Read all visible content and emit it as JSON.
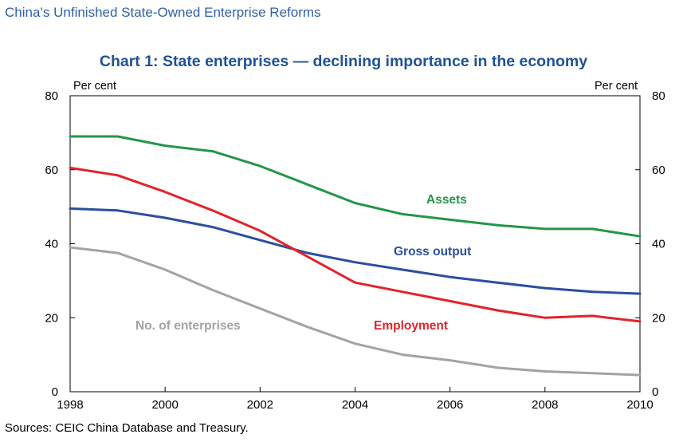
{
  "header": "China’s Unfinished State-Owned Enterprise Reforms",
  "source": "Sources: CEIC China Database and Treasury.",
  "colors": {
    "assets": "#24964a",
    "gross_output": "#2b4f9e",
    "employment": "#e2232a",
    "enterprises": "#a3a3a3",
    "title": "#1f5296"
  },
  "chart_data": {
    "type": "line",
    "title": "Chart 1: State enterprises — declining importance in the economy",
    "ylabel_left": "Per cent",
    "ylabel_right": "Per cent",
    "xlim": [
      1998,
      2010
    ],
    "ylim": [
      0,
      80
    ],
    "x_ticks": [
      "1998",
      "2000",
      "2002",
      "2004",
      "2006",
      "2008",
      "2010"
    ],
    "y_ticks": [
      "0",
      "20",
      "40",
      "60",
      "80"
    ],
    "x": [
      1998,
      1999,
      2000,
      2001,
      2002,
      2003,
      2004,
      2005,
      2006,
      2007,
      2008,
      2009,
      2010
    ],
    "series": [
      {
        "name": "Assets",
        "color": "#24964a",
        "values": [
          69,
          69,
          66.5,
          65,
          61,
          56,
          51,
          48,
          46.5,
          45,
          44,
          44,
          42
        ]
      },
      {
        "name": "Gross output",
        "color": "#2b4f9e",
        "values": [
          49.5,
          49,
          47,
          44.5,
          41,
          37.5,
          35,
          33,
          31,
          29.5,
          28,
          27,
          26.5
        ]
      },
      {
        "name": "Employment",
        "color": "#e2232a",
        "values": [
          60.5,
          58.5,
          54,
          49,
          43.5,
          36.5,
          29.5,
          27,
          24.5,
          22,
          20,
          20.5,
          19
        ]
      },
      {
        "name": "No. of enterprises",
        "color": "#a3a3a3",
        "values": [
          39,
          37.5,
          33,
          27.5,
          22.5,
          17.5,
          13,
          10,
          8.5,
          6.5,
          5.5,
          5,
          4.5
        ]
      }
    ]
  }
}
